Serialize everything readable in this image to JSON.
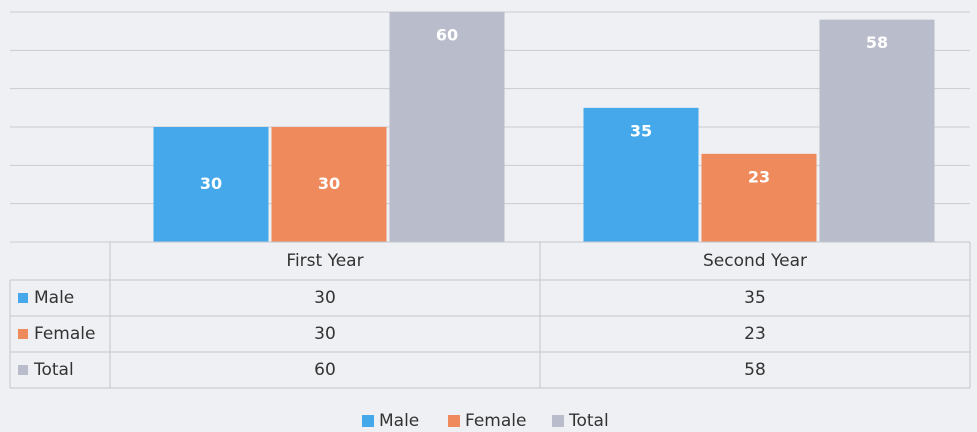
{
  "chart_data": {
    "type": "bar",
    "categories": [
      "First Year",
      "Second Year"
    ],
    "series": [
      {
        "name": "Male",
        "color": "#45a8ea",
        "values": [
          30,
          35
        ]
      },
      {
        "name": "Female",
        "color": "#ef8a5c",
        "values": [
          30,
          23
        ]
      },
      {
        "name": "Total",
        "color": "#b9bcca",
        "values": [
          60,
          58
        ]
      }
    ],
    "ylim": [
      0,
      60
    ],
    "yticks": [
      0,
      10,
      20,
      30,
      40,
      50,
      60
    ],
    "grid": true,
    "data_table": true,
    "legend": "bottom"
  }
}
